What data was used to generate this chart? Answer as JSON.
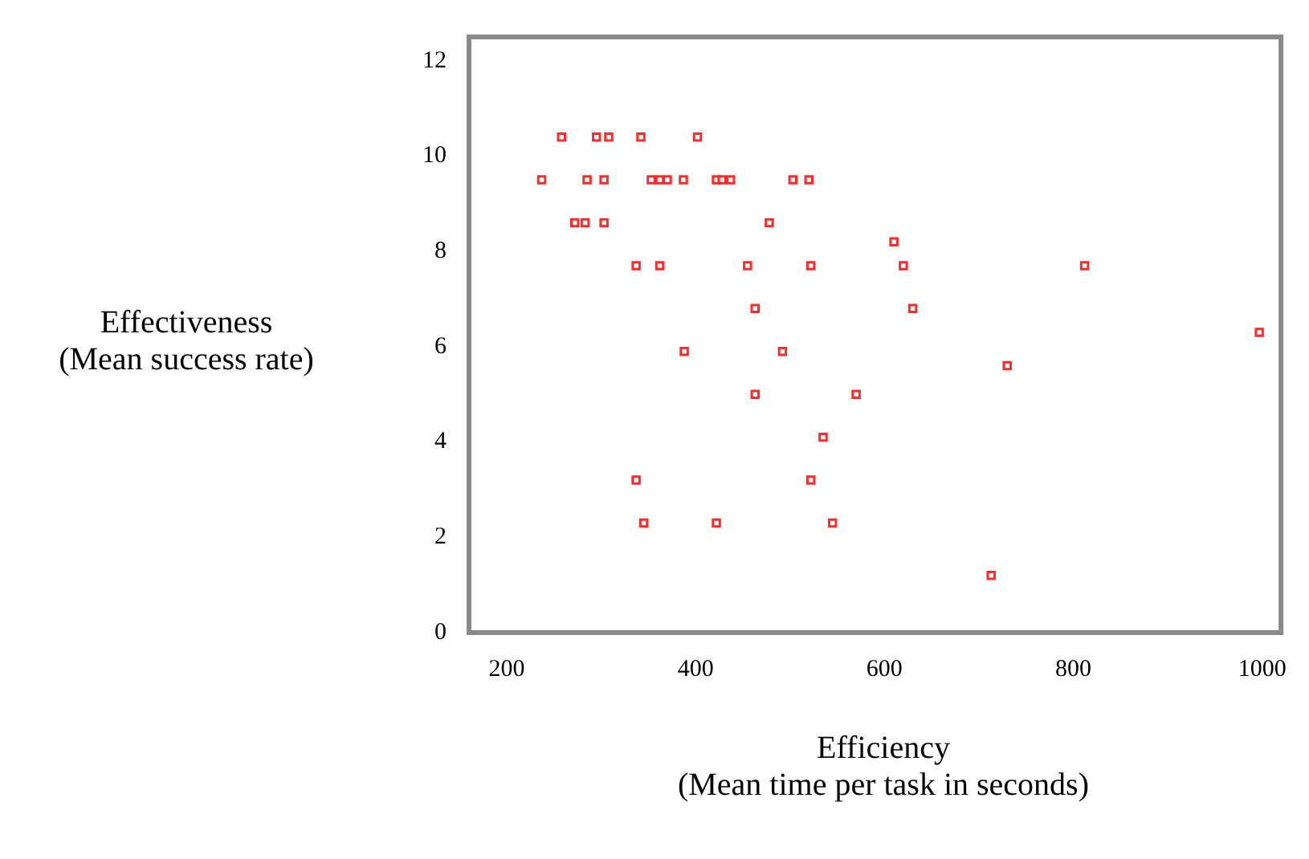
{
  "chart_data": {
    "type": "scatter",
    "xlabel": "Efficiency\n(Mean time per task in seconds)",
    "ylabel": "Effectiveness\n(Mean success rate)",
    "xlim": [
      160,
      1020
    ],
    "xticks": [
      200,
      400,
      600,
      800,
      1000
    ],
    "ylim": [
      0,
      12.5
    ],
    "yticks": [
      0,
      2,
      4,
      6,
      8,
      10,
      12
    ],
    "grid": false,
    "legend": false,
    "marker": "square",
    "series": [
      {
        "color": "#ff2a2a",
        "x": [
          258,
          295,
          308,
          342,
          402,
          237,
          285,
          303,
          353,
          362,
          370,
          387,
          422,
          428,
          437,
          503,
          520,
          272,
          283,
          303,
          478,
          337,
          362,
          455,
          522,
          620,
          812,
          610,
          463,
          630,
          997,
          388,
          492,
          463,
          570,
          730,
          535,
          337,
          522,
          345,
          422,
          545,
          713
        ],
        "values": [
          10.4,
          10.4,
          10.4,
          10.4,
          10.4,
          9.5,
          9.5,
          9.5,
          9.5,
          9.5,
          9.5,
          9.5,
          9.5,
          9.5,
          9.5,
          9.5,
          9.5,
          8.6,
          8.6,
          8.6,
          8.6,
          7.7,
          7.7,
          7.7,
          7.7,
          7.7,
          7.7,
          8.2,
          6.8,
          6.8,
          6.3,
          5.9,
          5.9,
          5.0,
          5.0,
          5.6,
          4.1,
          3.2,
          3.2,
          2.3,
          2.3,
          2.3,
          1.2
        ]
      }
    ]
  }
}
